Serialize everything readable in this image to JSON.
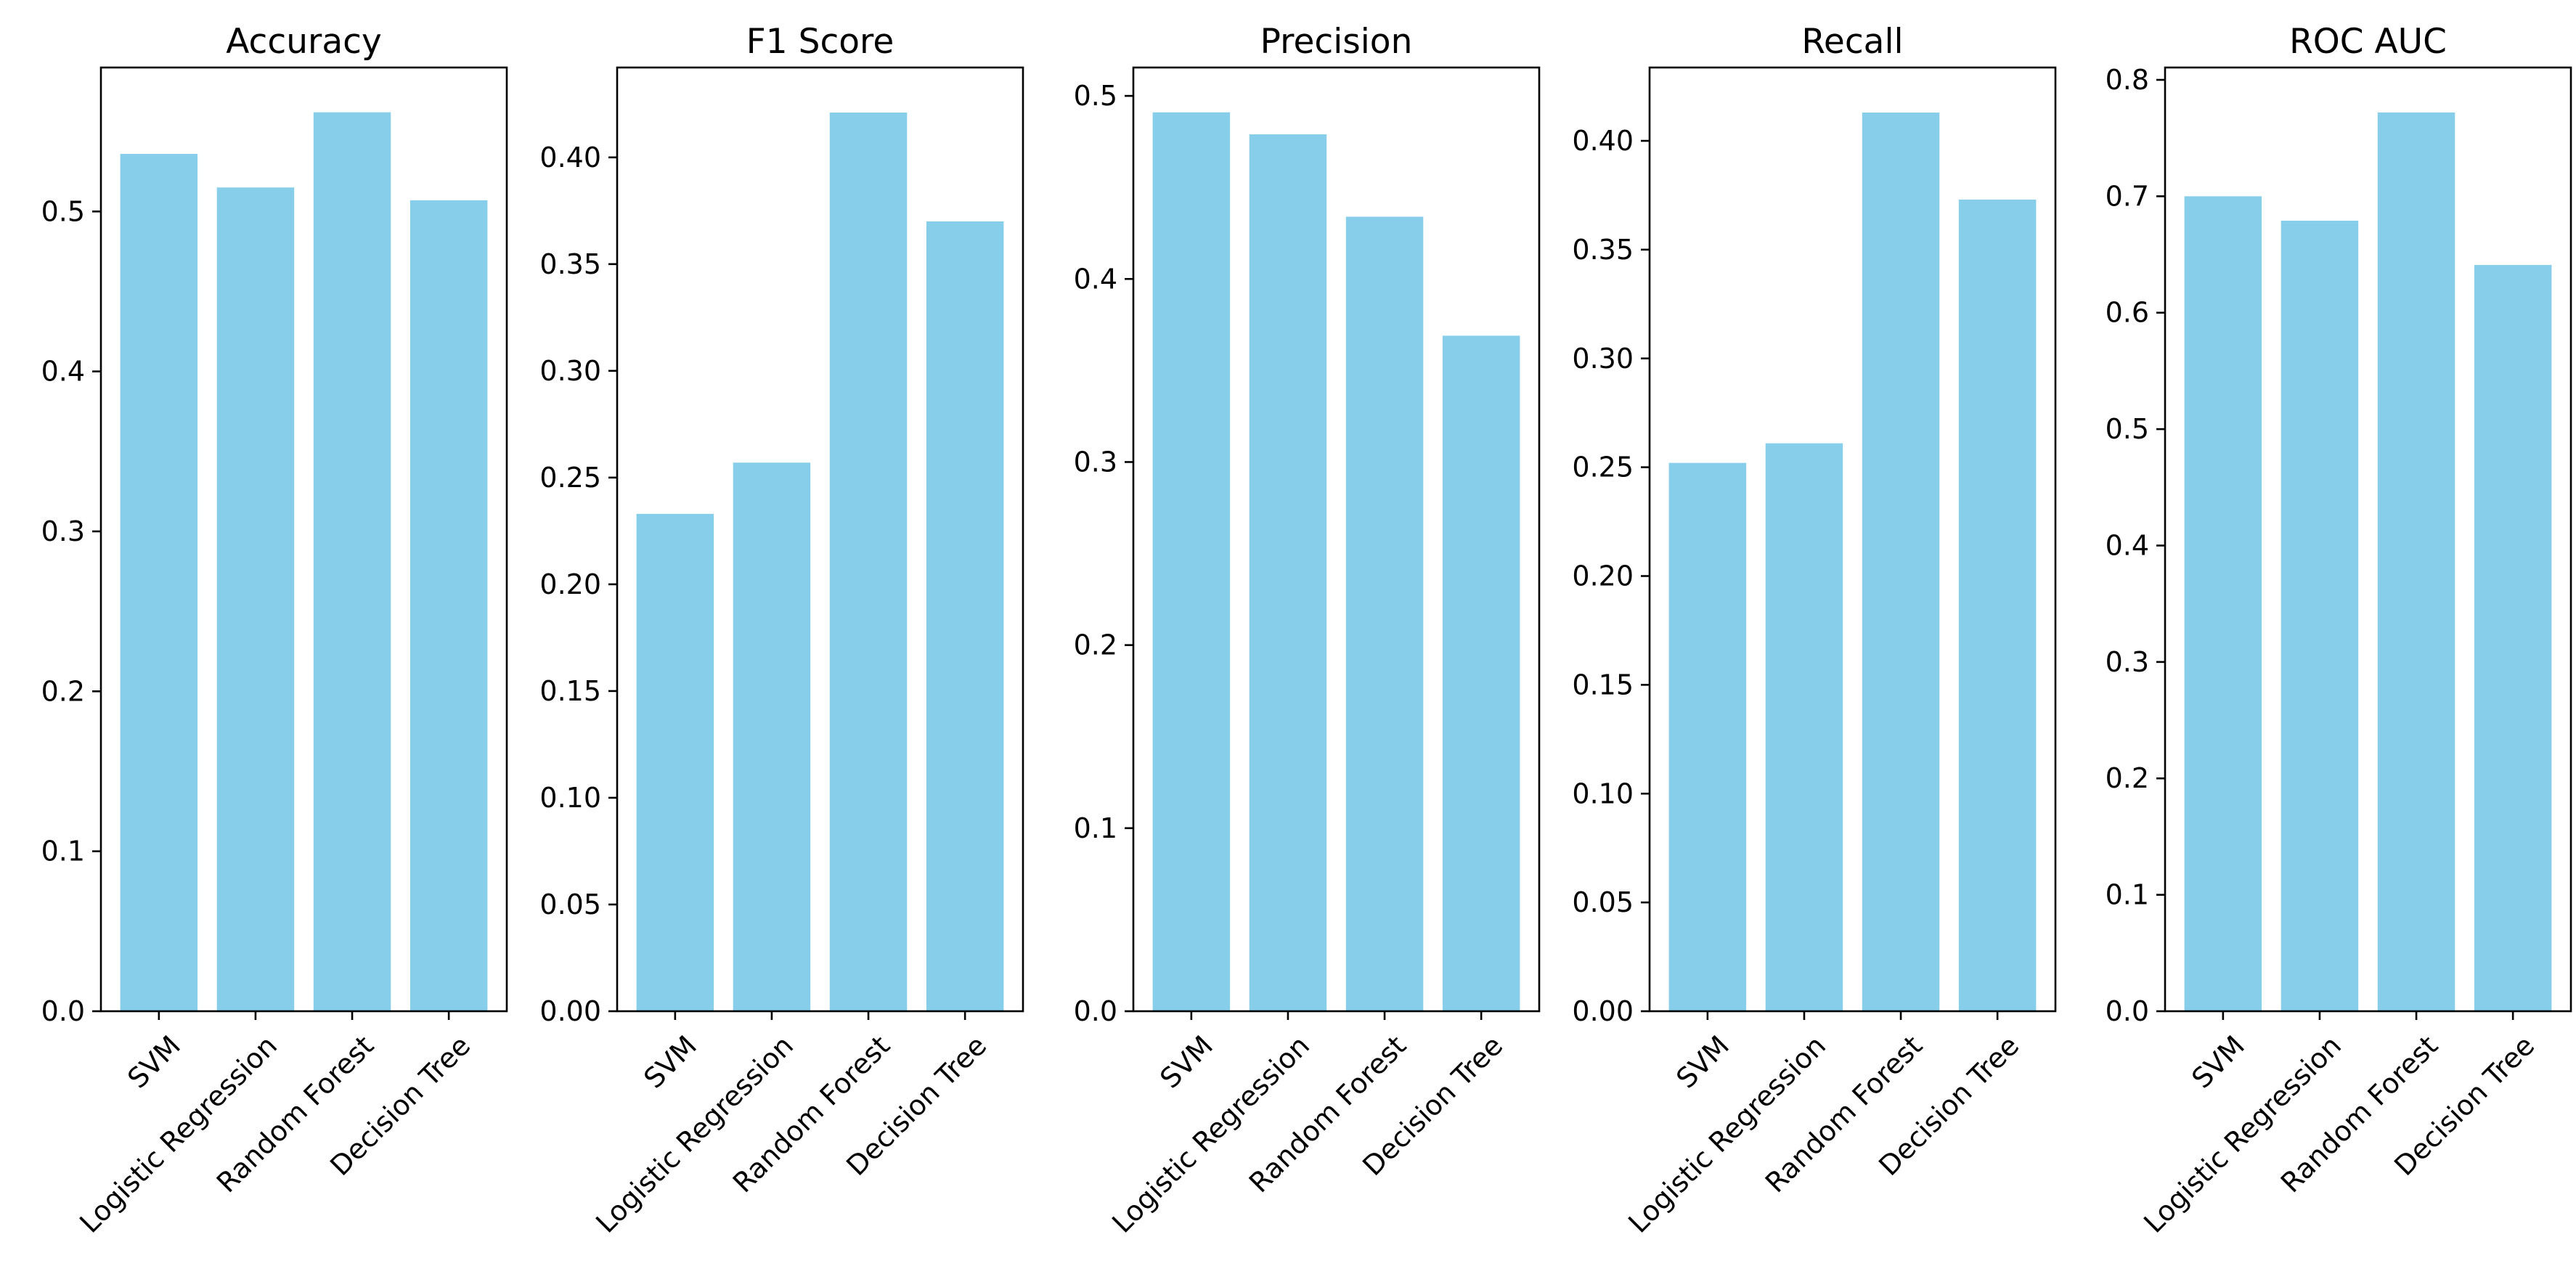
{
  "chart_data": [
    {
      "type": "bar",
      "title": "Accuracy",
      "xlabel": "",
      "ylabel": "",
      "categories": [
        "SVM",
        "Logistic Regression",
        "Random Forest",
        "Decision Tree"
      ],
      "values": [
        0.536,
        0.515,
        0.562,
        0.507
      ],
      "ylim": [
        0,
        0.59
      ],
      "yticks": [
        0.0,
        0.1,
        0.2,
        0.3,
        0.4,
        0.5
      ],
      "ytick_labels": [
        "0.0",
        "0.1",
        "0.2",
        "0.3",
        "0.4",
        "0.5"
      ],
      "color": "#87ceeb",
      "grid": false
    },
    {
      "type": "bar",
      "title": "F1 Score",
      "xlabel": "",
      "ylabel": "",
      "categories": [
        "SVM",
        "Logistic Regression",
        "Random Forest",
        "Decision Tree"
      ],
      "values": [
        0.233,
        0.257,
        0.421,
        0.37
      ],
      "ylim": [
        0,
        0.4421
      ],
      "yticks": [
        0.0,
        0.05,
        0.1,
        0.15,
        0.2,
        0.25,
        0.3,
        0.35,
        0.4
      ],
      "ytick_labels": [
        "0.00",
        "0.05",
        "0.10",
        "0.15",
        "0.20",
        "0.25",
        "0.30",
        "0.35",
        "0.40"
      ],
      "color": "#87ceeb",
      "grid": false
    },
    {
      "type": "bar",
      "title": "Precision",
      "xlabel": "",
      "ylabel": "",
      "categories": [
        "SVM",
        "Logistic Regression",
        "Random Forest",
        "Decision Tree"
      ],
      "values": [
        0.491,
        0.479,
        0.434,
        0.369
      ],
      "ylim": [
        0,
        0.5155
      ],
      "yticks": [
        0.0,
        0.1,
        0.2,
        0.3,
        0.4,
        0.5
      ],
      "ytick_labels": [
        "0.0",
        "0.1",
        "0.2",
        "0.3",
        "0.4",
        "0.5"
      ],
      "color": "#87ceeb",
      "grid": false
    },
    {
      "type": "bar",
      "title": "Recall",
      "xlabel": "",
      "ylabel": "",
      "categories": [
        "SVM",
        "Logistic Regression",
        "Random Forest",
        "Decision Tree"
      ],
      "values": [
        0.252,
        0.261,
        0.413,
        0.373
      ],
      "ylim": [
        0,
        0.4337
      ],
      "yticks": [
        0.0,
        0.05,
        0.1,
        0.15,
        0.2,
        0.25,
        0.3,
        0.35,
        0.4
      ],
      "ytick_labels": [
        "0.00",
        "0.05",
        "0.10",
        "0.15",
        "0.20",
        "0.25",
        "0.30",
        "0.35",
        "0.40"
      ],
      "color": "#87ceeb",
      "grid": false
    },
    {
      "type": "bar",
      "title": "ROC AUC",
      "xlabel": "",
      "ylabel": "",
      "categories": [
        "SVM",
        "Logistic Regression",
        "Random Forest",
        "Decision Tree"
      ],
      "values": [
        0.7,
        0.679,
        0.772,
        0.641
      ],
      "ylim": [
        0,
        0.8106
      ],
      "yticks": [
        0.0,
        0.1,
        0.2,
        0.3,
        0.4,
        0.5,
        0.6,
        0.7,
        0.8
      ],
      "ytick_labels": [
        "0.0",
        "0.1",
        "0.2",
        "0.3",
        "0.4",
        "0.5",
        "0.6",
        "0.7",
        "0.8"
      ],
      "color": "#87ceeb",
      "grid": false
    }
  ]
}
